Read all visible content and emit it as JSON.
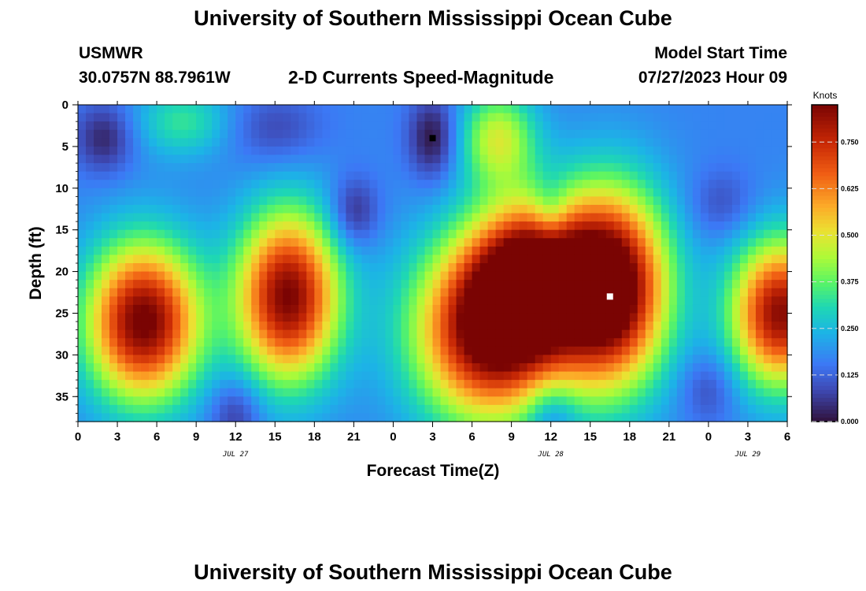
{
  "page": {
    "title": "University of Southern Mississippi Ocean Cube",
    "title_repeat": "University of Southern Mississippi Ocean Cube",
    "station": "USMWR",
    "coordinates": "30.0757N  88.7961W",
    "plot_title": "2-D Currents Speed-Magnitude",
    "model_start_label": "Model Start Time",
    "model_start_value": "07/27/2023 Hour 09"
  },
  "chart_data": {
    "type": "heatmap",
    "title": "2-D Currents Speed-Magnitude",
    "xlabel": "Forecast Time(Z)",
    "ylabel": "Depth (ft)",
    "x_tick_labels": [
      "0",
      "3",
      "6",
      "9",
      "12",
      "15",
      "18",
      "21",
      "0",
      "3",
      "6",
      "9",
      "12",
      "15",
      "18",
      "21",
      "0",
      "3",
      "6"
    ],
    "x_range_hours": [
      0,
      54
    ],
    "date_labels": [
      {
        "label": "JUL 27",
        "hour": 12
      },
      {
        "label": "JUL 28",
        "hour": 36
      },
      {
        "label": "JUL 29",
        "hour": 51
      }
    ],
    "y_ticks": [
      0,
      5,
      10,
      15,
      20,
      25,
      30,
      35
    ],
    "ylim": [
      0,
      38
    ],
    "y_inverted": true,
    "colorbar": {
      "label": "Knots",
      "ticks": [
        "0.000",
        "0.125",
        "0.250",
        "0.375",
        "0.500",
        "0.625",
        "0.750"
      ],
      "range": [
        0,
        0.85
      ]
    },
    "background_speed": 0.17,
    "features": [
      {
        "hour": 5,
        "depth": 26,
        "speed": 0.7,
        "sx": 3.0,
        "sy": 6.5
      },
      {
        "hour": 16,
        "depth": 23,
        "speed": 0.68,
        "sx": 2.7,
        "sy": 7.0
      },
      {
        "hour": 31.5,
        "depth": 27,
        "speed": 0.74,
        "sx": 4.0,
        "sy": 7.5
      },
      {
        "hour": 34.5,
        "depth": 20,
        "speed": 0.55,
        "sx": 3.0,
        "sy": 6.0
      },
      {
        "hour": 40.5,
        "depth": 22,
        "speed": 0.8,
        "sx": 3.0,
        "sy": 8.0
      },
      {
        "hour": 53.5,
        "depth": 25,
        "speed": 0.66,
        "sx": 2.6,
        "sy": 6.0
      },
      {
        "hour": 32.0,
        "depth": 4,
        "speed": 0.3,
        "sx": 2.0,
        "sy": 4.0
      },
      {
        "hour": 8,
        "depth": 2,
        "speed": 0.16,
        "sx": 2.5,
        "sy": 3.0
      },
      {
        "hour": 2,
        "depth": 4,
        "speed": -0.14,
        "sx": 1.6,
        "sy": 3.0
      },
      {
        "hour": 15,
        "depth": 3,
        "speed": -0.09,
        "sx": 2.5,
        "sy": 3.0
      },
      {
        "hour": 21,
        "depth": 13,
        "speed": -0.14,
        "sx": 1.3,
        "sy": 3.0
      },
      {
        "hour": 27,
        "depth": 4,
        "speed": -0.17,
        "sx": 1.3,
        "sy": 3.5
      },
      {
        "hour": 36,
        "depth": 13,
        "speed": -0.12,
        "sx": 1.0,
        "sy": 3.0
      },
      {
        "hour": 36,
        "depth": 37,
        "speed": -0.13,
        "sx": 1.4,
        "sy": 3.0
      },
      {
        "hour": 12,
        "depth": 37,
        "speed": -0.12,
        "sx": 1.4,
        "sy": 3.0
      },
      {
        "hour": 48,
        "depth": 34,
        "speed": -0.09,
        "sx": 1.5,
        "sy": 3.0
      },
      {
        "hour": 49,
        "depth": 12,
        "speed": -0.08,
        "sx": 1.8,
        "sy": 3.0
      }
    ],
    "markers": [
      {
        "name": "min",
        "hour": 27,
        "depth": 4,
        "color": "#000000"
      },
      {
        "name": "max",
        "hour": 40.5,
        "depth": 23,
        "color": "#ffffff"
      }
    ]
  }
}
